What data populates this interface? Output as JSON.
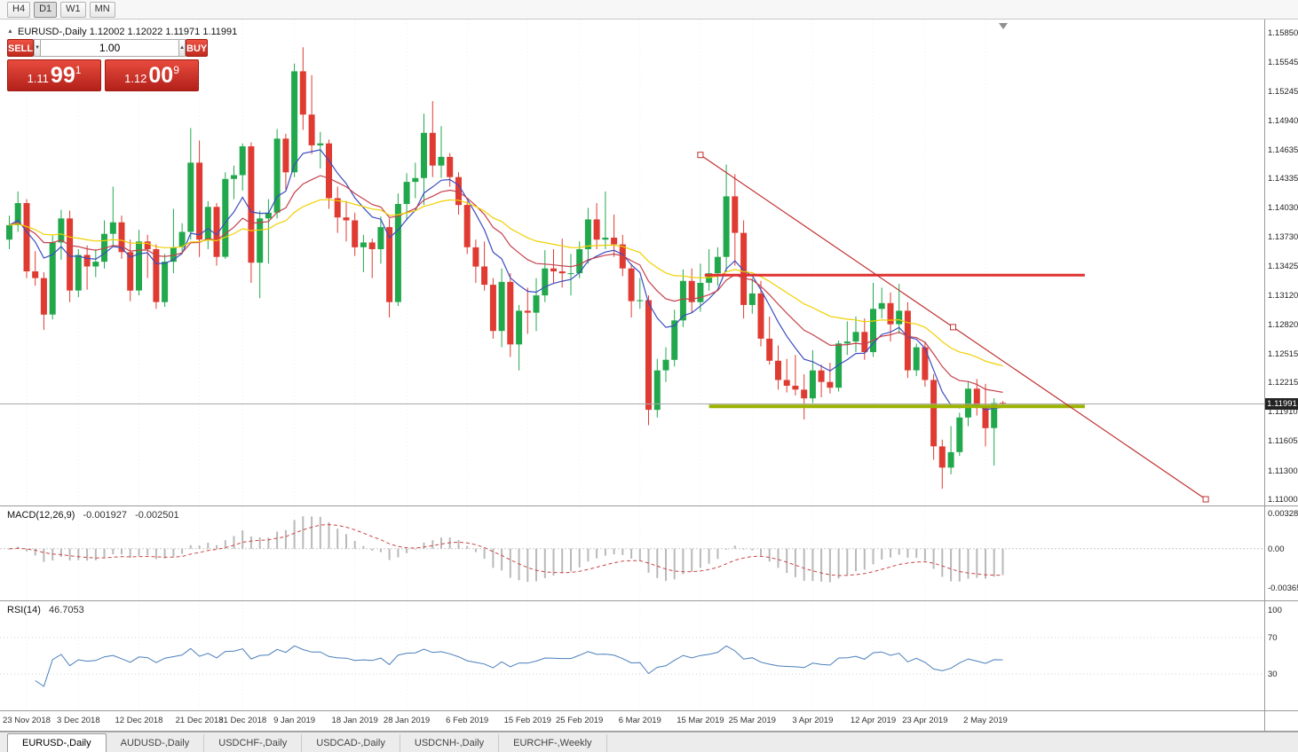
{
  "toolbar": {
    "timeframes": [
      {
        "label": "H4",
        "active": false
      },
      {
        "label": "D1",
        "active": true
      },
      {
        "label": "W1",
        "active": false
      },
      {
        "label": "MN",
        "active": false
      }
    ]
  },
  "chart": {
    "info_symbol": "EURUSD-,Daily",
    "info_ohlc": "1.12002 1.12022 1.11971 1.11991"
  },
  "trade": {
    "sell_label": "SELL",
    "buy_label": "BUY",
    "volume": "1.00",
    "sell_price": {
      "prefix": "1.11",
      "big": "99",
      "sup": "1"
    },
    "buy_price": {
      "prefix": "1.12",
      "big": "00",
      "sup": "9"
    }
  },
  "chart_data": {
    "type": "candlestick",
    "symbol": "EURUSD-",
    "timeframe": "Daily",
    "current": {
      "open": "1.12002",
      "high": "1.12022",
      "low": "1.11971",
      "close": "1.11991"
    },
    "y_axis": {
      "min": 1.11,
      "max": 1.1585,
      "labels": [
        "1.15850",
        "1.15545",
        "1.15245",
        "1.14940",
        "1.14635",
        "1.14335",
        "1.14030",
        "1.13730",
        "1.13425",
        "1.13120",
        "1.12820",
        "1.12515",
        "1.12215",
        "1.11910",
        "1.11605",
        "1.11300",
        "1.11000"
      ]
    },
    "x_labels": [
      {
        "text": "23 Nov 2018",
        "i": 2
      },
      {
        "text": "3 Dec 2018",
        "i": 8
      },
      {
        "text": "12 Dec 2018",
        "i": 15
      },
      {
        "text": "21 Dec 2018",
        "i": 22
      },
      {
        "text": "31 Dec 2018",
        "i": 27
      },
      {
        "text": "9 Jan 2019",
        "i": 33
      },
      {
        "text": "18 Jan 2019",
        "i": 40
      },
      {
        "text": "28 Jan 2019",
        "i": 46
      },
      {
        "text": "6 Feb 2019",
        "i": 53
      },
      {
        "text": "15 Feb 2019",
        "i": 60
      },
      {
        "text": "25 Feb 2019",
        "i": 66
      },
      {
        "text": "6 Mar 2019",
        "i": 73
      },
      {
        "text": "15 Mar 2019",
        "i": 80
      },
      {
        "text": "25 Mar 2019",
        "i": 86
      },
      {
        "text": "3 Apr 2019",
        "i": 93
      },
      {
        "text": "12 Apr 2019",
        "i": 100
      },
      {
        "text": "23 Apr 2019",
        "i": 106
      },
      {
        "text": "2 May 2019",
        "i": 113
      }
    ],
    "candles": [
      [
        1.137,
        1.1395,
        1.136,
        1.1385
      ],
      [
        1.1385,
        1.142,
        1.1378,
        1.1408
      ],
      [
        1.1408,
        1.1412,
        1.133,
        1.1337
      ],
      [
        1.1337,
        1.1358,
        1.1322,
        1.133
      ],
      [
        1.133,
        1.1336,
        1.1276,
        1.1292
      ],
      [
        1.1292,
        1.1374,
        1.1287,
        1.1367
      ],
      [
        1.1367,
        1.1401,
        1.1349,
        1.1392
      ],
      [
        1.1392,
        1.14,
        1.1305,
        1.1317
      ],
      [
        1.1317,
        1.136,
        1.131,
        1.1354
      ],
      [
        1.1354,
        1.1364,
        1.1318,
        1.1342
      ],
      [
        1.1342,
        1.136,
        1.1331,
        1.1347
      ],
      [
        1.1347,
        1.139,
        1.134,
        1.1376
      ],
      [
        1.1376,
        1.1425,
        1.1363,
        1.1388
      ],
      [
        1.1388,
        1.1395,
        1.135,
        1.1357
      ],
      [
        1.1357,
        1.137,
        1.1306,
        1.1317
      ],
      [
        1.1317,
        1.138,
        1.1312,
        1.1368
      ],
      [
        1.1368,
        1.1375,
        1.133,
        1.136
      ],
      [
        1.136,
        1.1365,
        1.1298,
        1.1305
      ],
      [
        1.1305,
        1.1355,
        1.13,
        1.1347
      ],
      [
        1.1347,
        1.1402,
        1.1335,
        1.1362
      ],
      [
        1.1362,
        1.1387,
        1.1355,
        1.1378
      ],
      [
        1.1378,
        1.1486,
        1.137,
        1.145
      ],
      [
        1.145,
        1.1473,
        1.1352,
        1.137
      ],
      [
        1.137,
        1.141,
        1.136,
        1.1404
      ],
      [
        1.1404,
        1.1408,
        1.1343,
        1.1352
      ],
      [
        1.1352,
        1.144,
        1.135,
        1.1433
      ],
      [
        1.1433,
        1.1447,
        1.1412,
        1.1437
      ],
      [
        1.1437,
        1.147,
        1.1421,
        1.1467
      ],
      [
        1.1467,
        1.1471,
        1.1325,
        1.1346
      ],
      [
        1.1346,
        1.14,
        1.1309,
        1.1392
      ],
      [
        1.1392,
        1.1412,
        1.1345,
        1.1398
      ],
      [
        1.1398,
        1.1485,
        1.1392,
        1.1475
      ],
      [
        1.1475,
        1.148,
        1.1422,
        1.144
      ],
      [
        1.144,
        1.1553,
        1.1435,
        1.1545
      ],
      [
        1.1545,
        1.157,
        1.1484,
        1.15
      ],
      [
        1.15,
        1.1541,
        1.1459,
        1.1468
      ],
      [
        1.1468,
        1.1482,
        1.1444,
        1.147
      ],
      [
        1.147,
        1.1474,
        1.1402,
        1.1413
      ],
      [
        1.1413,
        1.1425,
        1.1377,
        1.1393
      ],
      [
        1.1393,
        1.141,
        1.1368,
        1.139
      ],
      [
        1.139,
        1.1398,
        1.1353,
        1.1362
      ],
      [
        1.1362,
        1.1375,
        1.1336,
        1.1367
      ],
      [
        1.1367,
        1.1371,
        1.133,
        1.136
      ],
      [
        1.136,
        1.1394,
        1.1345,
        1.1383
      ],
      [
        1.1383,
        1.1392,
        1.1289,
        1.1305
      ],
      [
        1.1305,
        1.1418,
        1.1301,
        1.1407
      ],
      [
        1.1407,
        1.1439,
        1.139,
        1.143
      ],
      [
        1.143,
        1.145,
        1.1413,
        1.1434
      ],
      [
        1.1434,
        1.1501,
        1.1406,
        1.1481
      ],
      [
        1.1481,
        1.1514,
        1.1435,
        1.1447
      ],
      [
        1.1447,
        1.1488,
        1.1434,
        1.1456
      ],
      [
        1.1456,
        1.146,
        1.1425,
        1.1435
      ],
      [
        1.1435,
        1.144,
        1.1396,
        1.1406
      ],
      [
        1.1406,
        1.141,
        1.1355,
        1.1362
      ],
      [
        1.1362,
        1.137,
        1.1325,
        1.1342
      ],
      [
        1.1342,
        1.1368,
        1.1317,
        1.1323
      ],
      [
        1.1323,
        1.133,
        1.1267,
        1.1275
      ],
      [
        1.1275,
        1.134,
        1.1258,
        1.1326
      ],
      [
        1.1326,
        1.1335,
        1.1248,
        1.1261
      ],
      [
        1.1261,
        1.1302,
        1.1234,
        1.1296
      ],
      [
        1.1296,
        1.132,
        1.1272,
        1.1294
      ],
      [
        1.1294,
        1.133,
        1.1275,
        1.1312
      ],
      [
        1.1312,
        1.1359,
        1.1305,
        1.134
      ],
      [
        1.134,
        1.136,
        1.1324,
        1.1337
      ],
      [
        1.1337,
        1.1371,
        1.132,
        1.1335
      ],
      [
        1.1335,
        1.1355,
        1.1312,
        1.1335
      ],
      [
        1.1335,
        1.1368,
        1.133,
        1.136
      ],
      [
        1.136,
        1.1403,
        1.1345,
        1.1391
      ],
      [
        1.1391,
        1.1408,
        1.136,
        1.137
      ],
      [
        1.137,
        1.142,
        1.136,
        1.1372
      ],
      [
        1.1372,
        1.1396,
        1.1352,
        1.1365
      ],
      [
        1.1365,
        1.1375,
        1.1332,
        1.134
      ],
      [
        1.134,
        1.1345,
        1.1289,
        1.1306
      ],
      [
        1.1306,
        1.133,
        1.1298,
        1.1307
      ],
      [
        1.1307,
        1.1312,
        1.1177,
        1.1193
      ],
      [
        1.1193,
        1.1246,
        1.1185,
        1.1234
      ],
      [
        1.1234,
        1.1258,
        1.1222,
        1.1245
      ],
      [
        1.1245,
        1.1297,
        1.1238,
        1.1286
      ],
      [
        1.1286,
        1.1339,
        1.1279,
        1.1327
      ],
      [
        1.1327,
        1.134,
        1.1294,
        1.1305
      ],
      [
        1.1305,
        1.1345,
        1.1295,
        1.1325
      ],
      [
        1.1325,
        1.136,
        1.1317,
        1.1335
      ],
      [
        1.1335,
        1.1362,
        1.1322,
        1.1352
      ],
      [
        1.1352,
        1.1448,
        1.1336,
        1.1415
      ],
      [
        1.1415,
        1.1438,
        1.1343,
        1.1377
      ],
      [
        1.1377,
        1.139,
        1.1288,
        1.1302
      ],
      [
        1.1302,
        1.133,
        1.1293,
        1.1314
      ],
      [
        1.1314,
        1.1327,
        1.1259,
        1.1267
      ],
      [
        1.1267,
        1.129,
        1.124,
        1.1244
      ],
      [
        1.1244,
        1.126,
        1.1214,
        1.1224
      ],
      [
        1.1224,
        1.1246,
        1.1211,
        1.1218
      ],
      [
        1.1218,
        1.125,
        1.1208,
        1.1214
      ],
      [
        1.1214,
        1.123,
        1.1183,
        1.1205
      ],
      [
        1.1205,
        1.1255,
        1.12,
        1.1234
      ],
      [
        1.1234,
        1.124,
        1.1206,
        1.1222
      ],
      [
        1.1222,
        1.1242,
        1.121,
        1.1216
      ],
      [
        1.1216,
        1.1265,
        1.1212,
        1.1262
      ],
      [
        1.1262,
        1.1285,
        1.125,
        1.1264
      ],
      [
        1.1264,
        1.129,
        1.1253,
        1.1274
      ],
      [
        1.1274,
        1.1288,
        1.1245,
        1.1253
      ],
      [
        1.1253,
        1.1325,
        1.1248,
        1.1298
      ],
      [
        1.1298,
        1.132,
        1.1288,
        1.1304
      ],
      [
        1.1304,
        1.1315,
        1.1264,
        1.1282
      ],
      [
        1.1282,
        1.1324,
        1.1272,
        1.1296
      ],
      [
        1.1296,
        1.1305,
        1.1226,
        1.1234
      ],
      [
        1.1234,
        1.1262,
        1.1228,
        1.1258
      ],
      [
        1.1258,
        1.1264,
        1.1217,
        1.1224
      ],
      [
        1.1224,
        1.123,
        1.1141,
        1.1155
      ],
      [
        1.1155,
        1.1162,
        1.1111,
        1.1133
      ],
      [
        1.1133,
        1.1176,
        1.1126,
        1.1149
      ],
      [
        1.1149,
        1.119,
        1.1145,
        1.1185
      ],
      [
        1.1185,
        1.1222,
        1.1176,
        1.1215
      ],
      [
        1.1215,
        1.1225,
        1.1187,
        1.1195
      ],
      [
        1.1195,
        1.122,
        1.1155,
        1.1174
      ],
      [
        1.1174,
        1.1205,
        1.1135,
        1.12
      ],
      [
        1.12002,
        1.12022,
        1.11971,
        1.11991
      ]
    ],
    "colors": {
      "bull": "#22A84C",
      "bear": "#DF3B32",
      "ma_fast": "#3B4CC0",
      "ma_mid": "#C4414B",
      "ma_slow": "#F0D000"
    },
    "bid_line": {
      "price": 1.11991,
      "label": "1.11991",
      "color": "#a8a8a8"
    },
    "objects": {
      "trendline": {
        "from_i": 80,
        "from_price": 1.1458,
        "to_i": 138.5,
        "to_price": 1.11,
        "color": "#C03030"
      },
      "resistance_line": {
        "price": 1.1333,
        "from_i": 80.5,
        "to_i": 124.5,
        "color": "#E03232",
        "width": 3
      },
      "support_line": {
        "price": 1.11965,
        "from_i": 81,
        "to_i": 124.5,
        "color": "#9CB300",
        "width": 4
      }
    },
    "indicators": [
      {
        "label": "MACD(12,26,9)",
        "values": [
          "-0.001927",
          "-0.002501"
        ],
        "axis_labels": [
          "0.003287",
          "0.00",
          "-0.003659"
        ],
        "ymax": 0.003287,
        "ymin": -0.003659
      },
      {
        "label": "RSI(14)",
        "value": "46.7053",
        "axis_labels": [
          "100",
          "70",
          "30"
        ],
        "levels": [
          70,
          30
        ]
      }
    ]
  },
  "tabs": [
    {
      "label": "EURUSD-,Daily",
      "active": true
    },
    {
      "label": "AUDUSD-,Daily",
      "active": false
    },
    {
      "label": "USDCHF-,Daily",
      "active": false
    },
    {
      "label": "USDCAD-,Daily",
      "active": false
    },
    {
      "label": "USDCNH-,Daily",
      "active": false
    },
    {
      "label": "EURCHF-,Weekly",
      "active": false
    }
  ]
}
